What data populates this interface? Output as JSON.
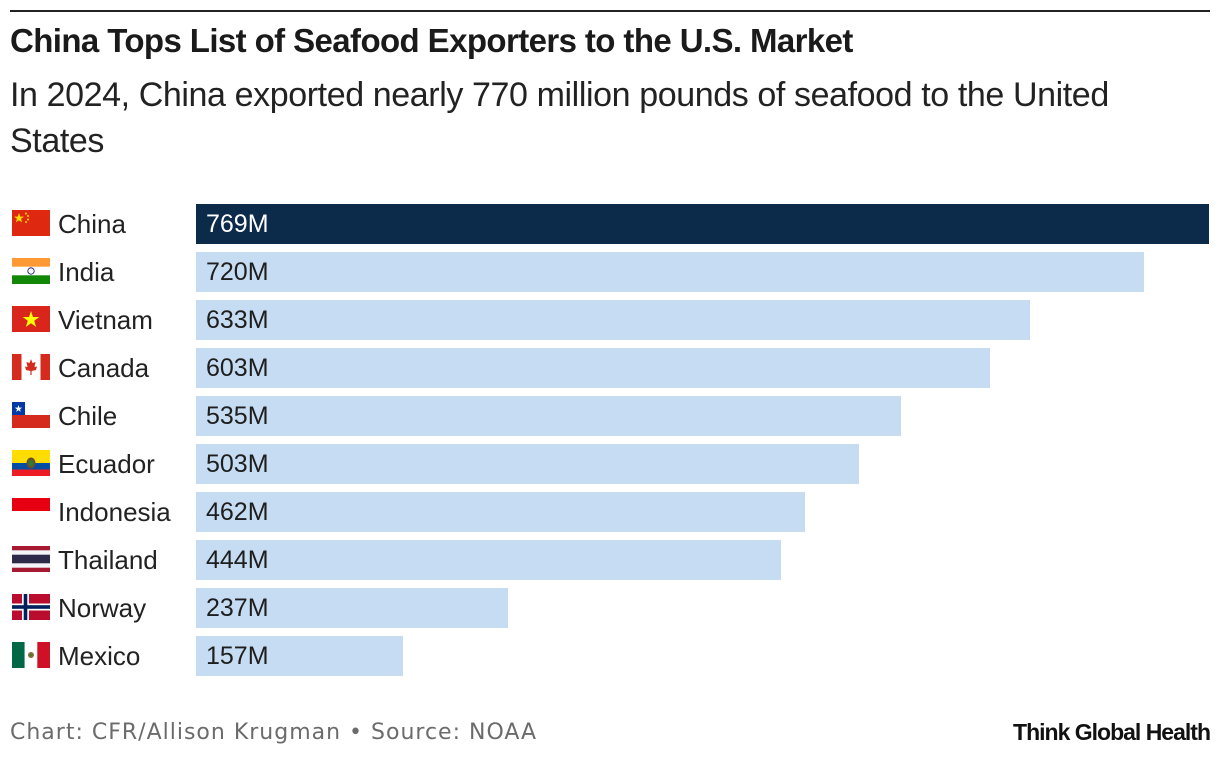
{
  "chart_data": {
    "type": "bar",
    "orientation": "horizontal",
    "title": "China Tops List of Seafood Exporters to the U.S. Market",
    "subtitle": "In 2024, China exported nearly 770 million pounds of seafood to the United States",
    "categories": [
      "China",
      "India",
      "Vietnam",
      "Canada",
      "Chile",
      "Ecuador",
      "Indonesia",
      "Thailand",
      "Norway",
      "Mexico"
    ],
    "values": [
      769,
      720,
      633,
      603,
      535,
      503,
      462,
      444,
      237,
      157
    ],
    "value_labels": [
      "769M",
      "720M",
      "633M",
      "603M",
      "535M",
      "503M",
      "462M",
      "444M",
      "237M",
      "157M"
    ],
    "flag_icons": [
      "china-flag-icon",
      "india-flag-icon",
      "vietnam-flag-icon",
      "canada-flag-icon",
      "chile-flag-icon",
      "ecuador-flag-icon",
      "indonesia-flag-icon",
      "thailand-flag-icon",
      "norway-flag-icon",
      "mexico-flag-icon"
    ],
    "unit": "million pounds",
    "xlim": [
      0,
      769
    ],
    "xlabel": "",
    "ylabel": "",
    "grid": false,
    "colors": {
      "highlight": "#0c2a4a",
      "default": "#c6dcf2"
    }
  },
  "footer": {
    "source": "Chart: CFR/Allison Krugman • Source: NOAA",
    "brand": "Think Global Health"
  }
}
